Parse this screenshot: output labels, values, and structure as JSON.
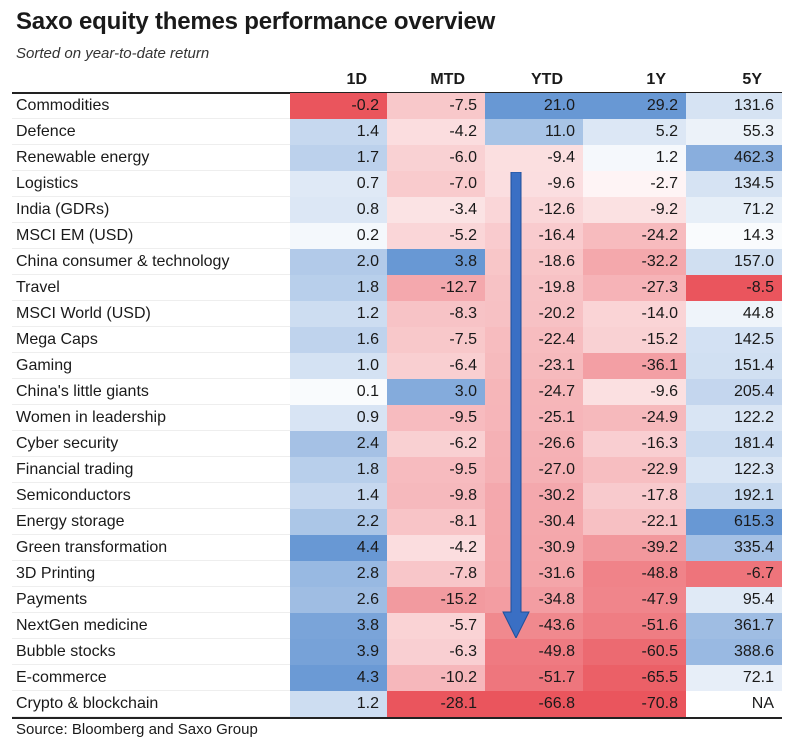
{
  "title": "Saxo equity themes performance overview",
  "subtitle": "Sorted on year-to-date return",
  "source": "Source: Bloomberg and Saxo Group",
  "chart_data": {
    "type": "table",
    "columns": [
      "1D",
      "MTD",
      "YTD",
      "1Y",
      "5Y"
    ],
    "rows": [
      {
        "name": "Commodities",
        "values": [
          "-0.2",
          "-7.5",
          "21.0",
          "29.2",
          "131.6"
        ]
      },
      {
        "name": "Defence",
        "values": [
          "1.4",
          "-4.2",
          "11.0",
          "5.2",
          "55.3"
        ]
      },
      {
        "name": "Renewable energy",
        "values": [
          "1.7",
          "-6.0",
          "-9.4",
          "1.2",
          "462.3"
        ]
      },
      {
        "name": "Logistics",
        "values": [
          "0.7",
          "-7.0",
          "-9.6",
          "-2.7",
          "134.5"
        ]
      },
      {
        "name": "India (GDRs)",
        "values": [
          "0.8",
          "-3.4",
          "-12.6",
          "-9.2",
          "71.2"
        ]
      },
      {
        "name": "MSCI EM (USD)",
        "values": [
          "0.2",
          "-5.2",
          "-16.4",
          "-24.2",
          "14.3"
        ]
      },
      {
        "name": "China consumer & technology",
        "values": [
          "2.0",
          "3.8",
          "-18.6",
          "-32.2",
          "157.0"
        ]
      },
      {
        "name": "Travel",
        "values": [
          "1.8",
          "-12.7",
          "-19.8",
          "-27.3",
          "-8.5"
        ]
      },
      {
        "name": "MSCI World (USD)",
        "values": [
          "1.2",
          "-8.3",
          "-20.2",
          "-14.0",
          "44.8"
        ]
      },
      {
        "name": "Mega Caps",
        "values": [
          "1.6",
          "-7.5",
          "-22.4",
          "-15.2",
          "142.5"
        ]
      },
      {
        "name": "Gaming",
        "values": [
          "1.0",
          "-6.4",
          "-23.1",
          "-36.1",
          "151.4"
        ]
      },
      {
        "name": "China's little giants",
        "values": [
          "0.1",
          "3.0",
          "-24.7",
          "-9.6",
          "205.4"
        ]
      },
      {
        "name": "Women in leadership",
        "values": [
          "0.9",
          "-9.5",
          "-25.1",
          "-24.9",
          "122.2"
        ]
      },
      {
        "name": "Cyber security",
        "values": [
          "2.4",
          "-6.2",
          "-26.6",
          "-16.3",
          "181.4"
        ]
      },
      {
        "name": "Financial trading",
        "values": [
          "1.8",
          "-9.5",
          "-27.0",
          "-22.9",
          "122.3"
        ]
      },
      {
        "name": "Semiconductors",
        "values": [
          "1.4",
          "-9.8",
          "-30.2",
          "-17.8",
          "192.1"
        ]
      },
      {
        "name": "Energy storage",
        "values": [
          "2.2",
          "-8.1",
          "-30.4",
          "-22.1",
          "615.3"
        ]
      },
      {
        "name": "Green transformation",
        "values": [
          "4.4",
          "-4.2",
          "-30.9",
          "-39.2",
          "335.4"
        ]
      },
      {
        "name": "3D Printing",
        "values": [
          "2.8",
          "-7.8",
          "-31.6",
          "-48.8",
          "-6.7"
        ]
      },
      {
        "name": "Payments",
        "values": [
          "2.6",
          "-15.2",
          "-34.8",
          "-47.9",
          "95.4"
        ]
      },
      {
        "name": "NextGen medicine",
        "values": [
          "3.8",
          "-5.7",
          "-43.6",
          "-51.6",
          "361.7"
        ]
      },
      {
        "name": "Bubble stocks",
        "values": [
          "3.9",
          "-6.3",
          "-49.8",
          "-60.5",
          "388.6"
        ]
      },
      {
        "name": "E-commerce",
        "values": [
          "4.3",
          "-10.2",
          "-51.7",
          "-65.5",
          "72.1"
        ]
      },
      {
        "name": "Crypto & blockchain",
        "values": [
          "1.2",
          "-28.1",
          "-66.8",
          "-70.8",
          "NA"
        ]
      }
    ]
  },
  "colors": {
    "positive": "#5b8fd0",
    "negative": "#e8464f",
    "arrow": "#3a6fc4",
    "arrow_outline": "#1f4f9a"
  }
}
